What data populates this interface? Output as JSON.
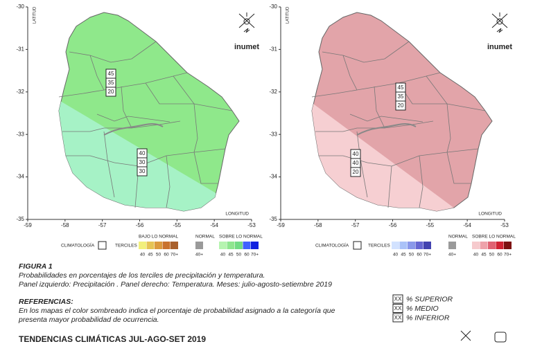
{
  "panels": [
    {
      "y_axis_label": "LATITUD",
      "x_axis_label": "LONGITUD",
      "logo": "inumet",
      "yticks": [
        "-30",
        "-31",
        "-32",
        "-33",
        "-34",
        "-35"
      ],
      "xticks": [
        "-59",
        "-58",
        "-57",
        "-56",
        "-55",
        "-54",
        "-53"
      ],
      "boxes": [
        [
          "45",
          "35",
          "20"
        ],
        [
          "40",
          "30",
          "30"
        ]
      ],
      "legend": {
        "climatology": "CLIMATOLOGÍA",
        "terciles": "TERCILES",
        "below": {
          "title": "BAJO LO NORMAL",
          "labels": [
            "40",
            "45",
            "50",
            "60",
            "70+"
          ],
          "colors": [
            "#f2f07c",
            "#e6c455",
            "#dc9a3e",
            "#c9722e",
            "#a9602c"
          ]
        },
        "normal": {
          "title": "NORMAL",
          "labels": [
            "40+"
          ],
          "colors": [
            "#9a9a9a"
          ]
        },
        "above": {
          "title": "SOBRE LO NORMAL",
          "labels": [
            "40",
            "45",
            "50",
            "60",
            "70+"
          ],
          "colors": [
            "#b6f4b0",
            "#8fe68f",
            "#72dc84",
            "#3f62ff",
            "#1222e0"
          ]
        }
      },
      "fills": [
        "#8fe88b",
        "#a6f2c6"
      ]
    },
    {
      "y_axis_label": "LATITUD",
      "x_axis_label": "LONGITUD",
      "logo": "inumet",
      "yticks": [
        "-30",
        "-31",
        "-32",
        "-33",
        "-34",
        "-35"
      ],
      "xticks": [
        "-59",
        "-58",
        "-57",
        "-56",
        "-55",
        "-54",
        "-53"
      ],
      "boxes": [
        [
          "45",
          "35",
          "20"
        ],
        [
          "40",
          "40",
          "20"
        ]
      ],
      "legend": {
        "climatology": "CLIMATOLOGÍA",
        "terciles": "TERCILES",
        "below": {
          "title": null,
          "labels": [
            "40",
            "45",
            "50",
            "60",
            "70+"
          ],
          "colors": [
            "#d2e2ff",
            "#aac2f8",
            "#8a98ea",
            "#6666d2",
            "#4242b0"
          ]
        },
        "normal": {
          "title": "NORMAL",
          "labels": [
            "40+"
          ],
          "colors": [
            "#9a9a9a"
          ]
        },
        "above": {
          "title": "SOBRE LO NORMAL",
          "labels": [
            "40",
            "45",
            "50",
            "60",
            "70+"
          ],
          "colors": [
            "#f6cacd",
            "#eea2aa",
            "#e06272",
            "#d02232",
            "#7e1212"
          ]
        }
      },
      "fills": [
        "#e2a4a9",
        "#f6cfd2"
      ]
    }
  ],
  "caption": {
    "figure": "FIGURA 1",
    "lines": [
      "Probabilidades en porcentajes de los terciles  de precipitación y temperatura.",
      "Panel izquierdo: Precipitación . Panel derecho: Temperatura. Meses: julio-agosto-setiembre 2019"
    ]
  },
  "references": {
    "title": "REFERENCIAS:",
    "lines": [
      "En los mapas el color sombreado indica el porcentaje de probabilidad asignado a la categoría que",
      "presenta mayor probabilidad de ocurrencia."
    ],
    "key": [
      {
        "box": "XX",
        "label": "% SUPERIOR"
      },
      {
        "box": "XX",
        "label": "% MEDIO"
      },
      {
        "box": "XX",
        "label": "% INFERIOR"
      }
    ]
  },
  "footer": "TENDENCIAS CLIMÁTICAS JUL-AGO-SET 2019"
}
